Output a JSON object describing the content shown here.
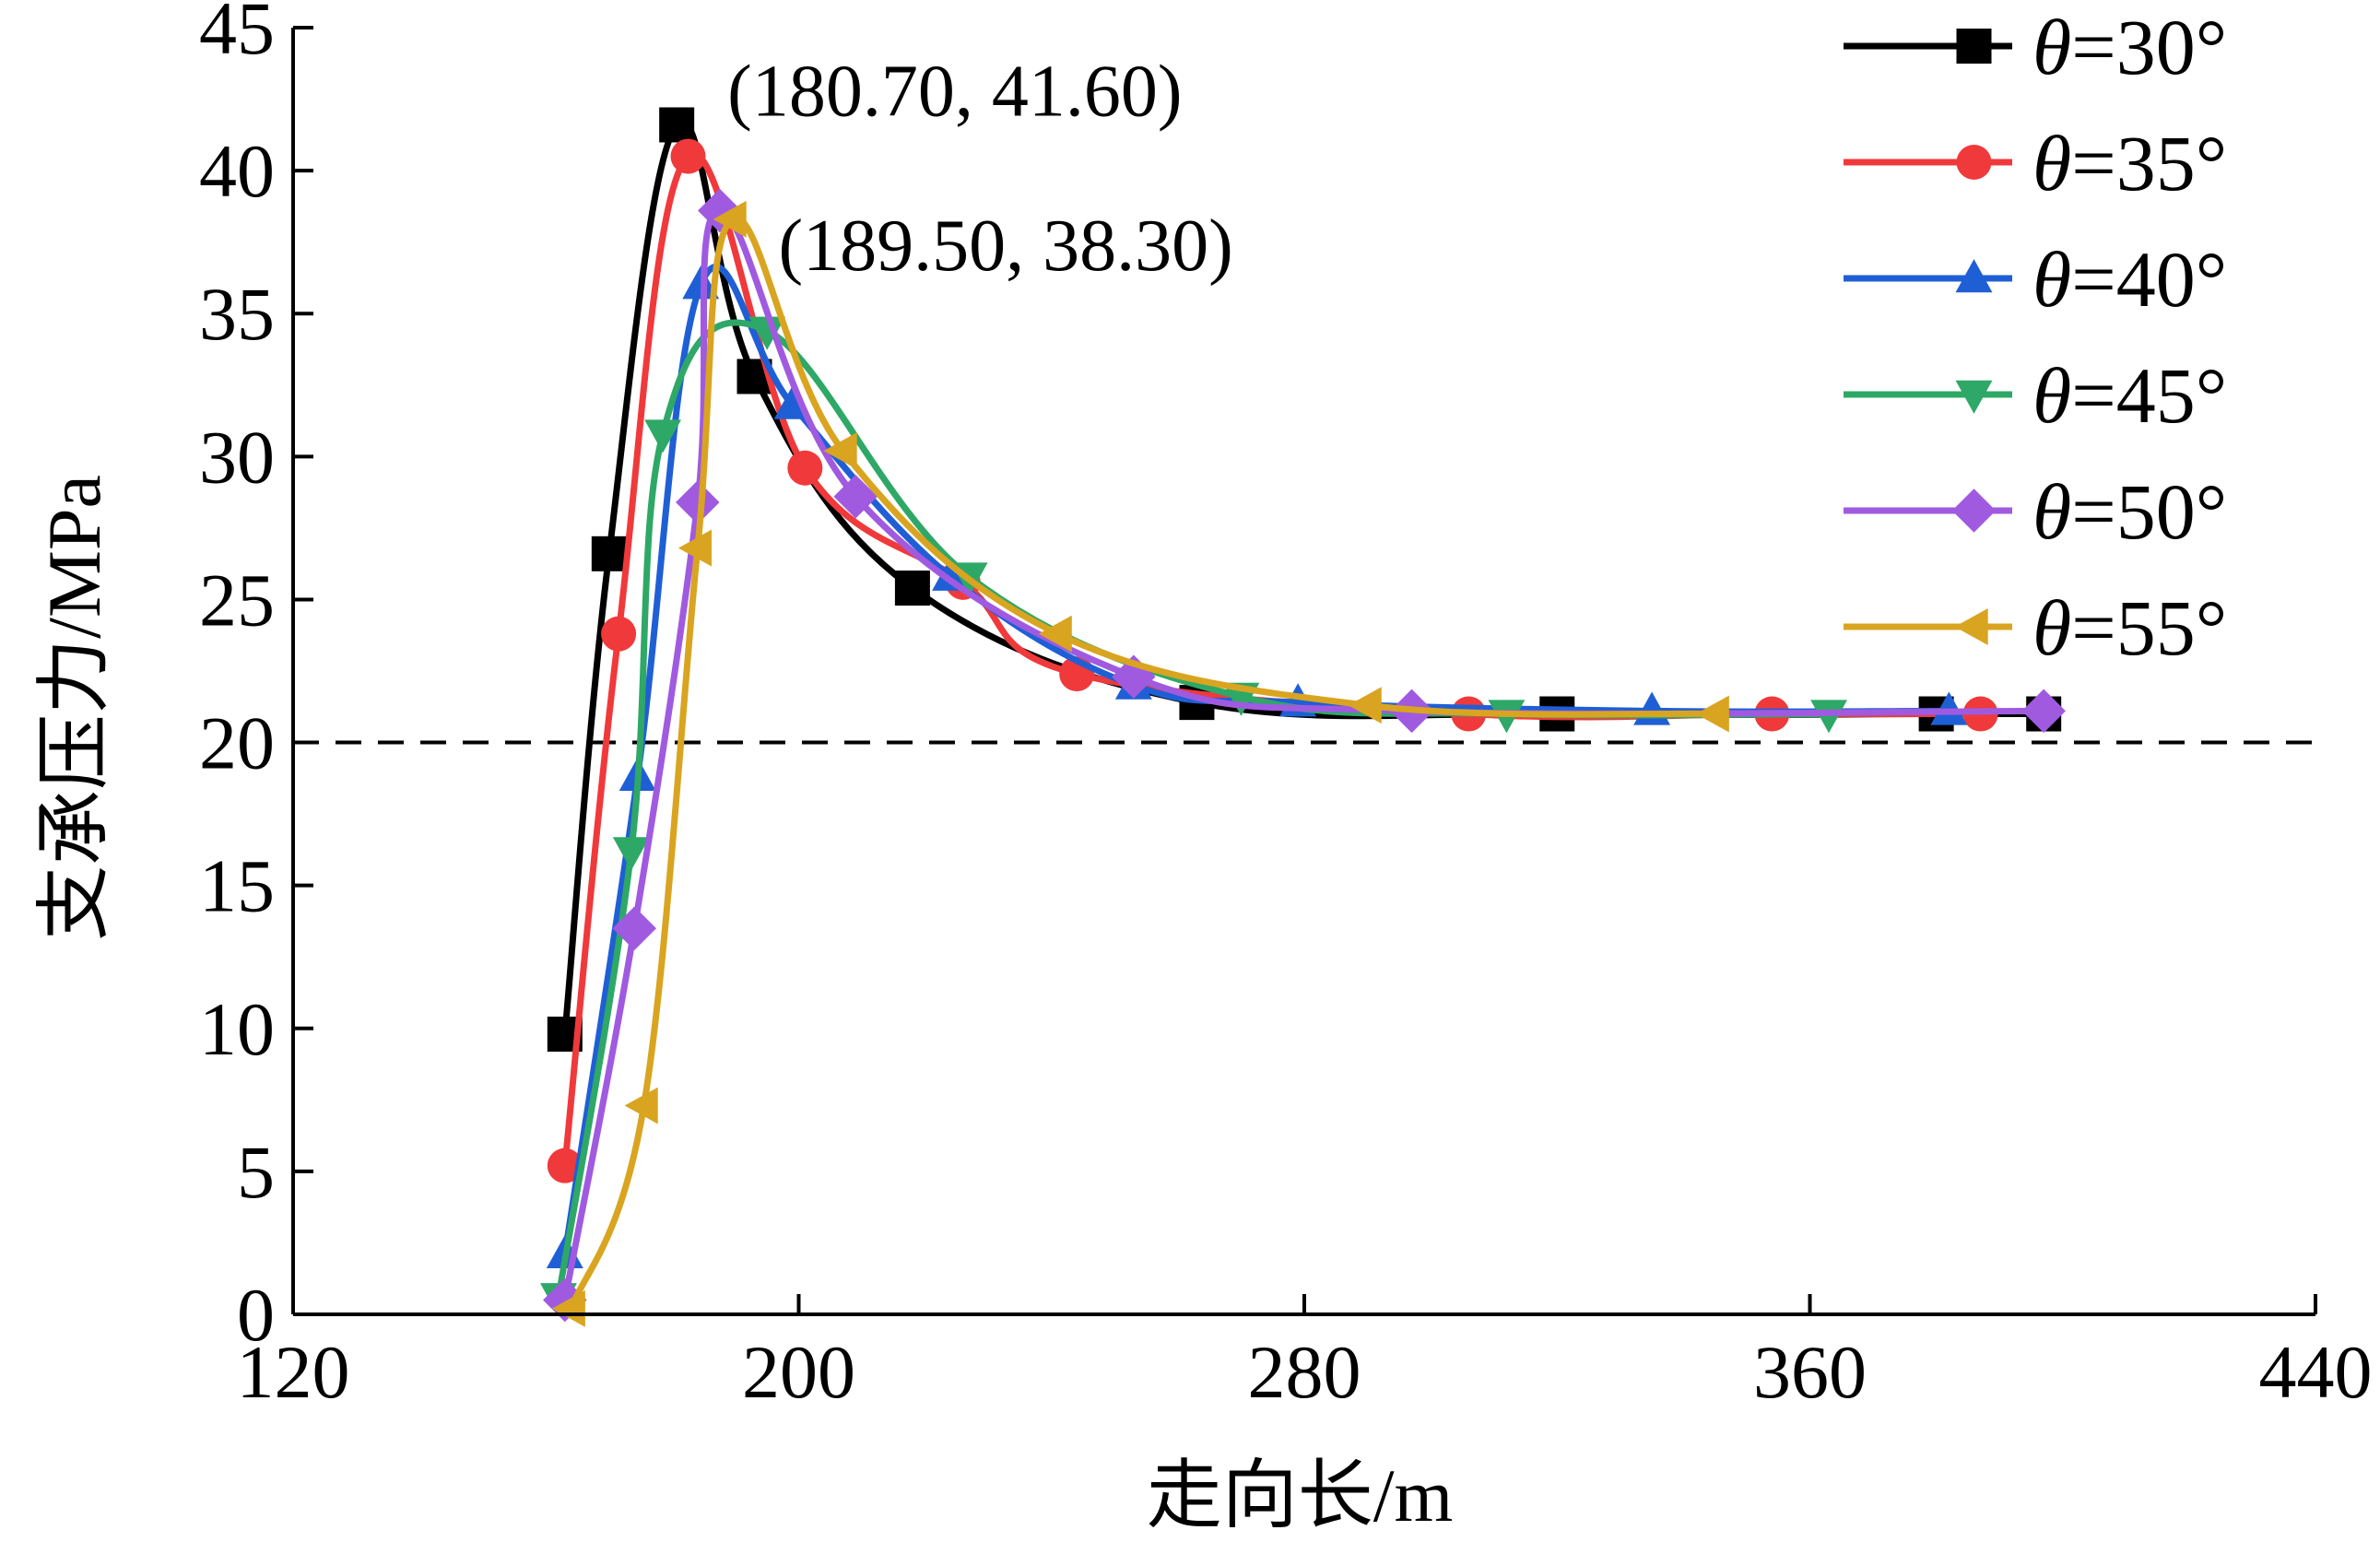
{
  "chart_data": {
    "type": "line",
    "xlabel": "走向长/m",
    "ylabel": "支承压力/MPa",
    "xlim": [
      120,
      440
    ],
    "ylim": [
      0,
      45
    ],
    "xticks": [
      120,
      200,
      280,
      360,
      440
    ],
    "yticks": [
      0,
      5,
      10,
      15,
      20,
      25,
      30,
      35,
      40,
      45
    ],
    "grid": false,
    "legend_position": "top-right",
    "reference_line": {
      "y": 20,
      "style": "dashed"
    },
    "annotations": [
      {
        "text": "(180.70, 41.60)",
        "x": 180.7,
        "y": 41.6
      },
      {
        "text": "(189.50, 38.30)",
        "x": 189.5,
        "y": 38.3
      }
    ],
    "series": [
      {
        "name": "θ=30°",
        "color": "#000000",
        "marker": "square",
        "x": [
          163,
          170,
          180.7,
          193,
          218,
          263,
          320,
          380,
          397
        ],
        "y": [
          9.8,
          26.6,
          41.6,
          32.8,
          25.4,
          21.4,
          21.0,
          21.0,
          21.0
        ]
      },
      {
        "name": "θ=35°",
        "color": "#f0393b",
        "marker": "circle",
        "x": [
          163,
          171.5,
          182.5,
          201,
          226,
          244,
          306,
          354,
          387
        ],
        "y": [
          5.2,
          23.8,
          40.5,
          29.6,
          25.6,
          22.4,
          21.0,
          21.0,
          21.0
        ]
      },
      {
        "name": "θ=40°",
        "color": "#1f5fd6",
        "marker": "triangle-up",
        "x": [
          163,
          174.5,
          184.5,
          199,
          224,
          253,
          279,
          335,
          382
        ],
        "y": [
          2.1,
          18.8,
          36.0,
          31.8,
          25.8,
          22.0,
          21.4,
          21.1,
          21.1
        ]
      },
      {
        "name": "θ=45°",
        "color": "#2ea866",
        "marker": "triangle-down",
        "x": [
          162,
          173.5,
          178.5,
          195,
          227,
          270,
          312,
          363
        ],
        "y": [
          0.6,
          16.2,
          30.8,
          34.4,
          25.8,
          21.6,
          21.0,
          21.0
        ]
      },
      {
        "name": "θ=50°",
        "color": "#a05ae0",
        "marker": "diamond",
        "x": [
          163,
          174,
          184,
          187.5,
          209,
          253,
          297,
          397
        ],
        "y": [
          0.5,
          13.5,
          28.4,
          38.6,
          28.6,
          22.3,
          21.1,
          21.1
        ]
      },
      {
        "name": "θ=55°",
        "color": "#d9a420",
        "marker": "triangle-left",
        "x": [
          164,
          175.5,
          184,
          189.5,
          207,
          241,
          290,
          345
        ],
        "y": [
          0.2,
          7.3,
          26.8,
          38.3,
          30.2,
          23.8,
          21.3,
          21.0
        ]
      }
    ]
  }
}
